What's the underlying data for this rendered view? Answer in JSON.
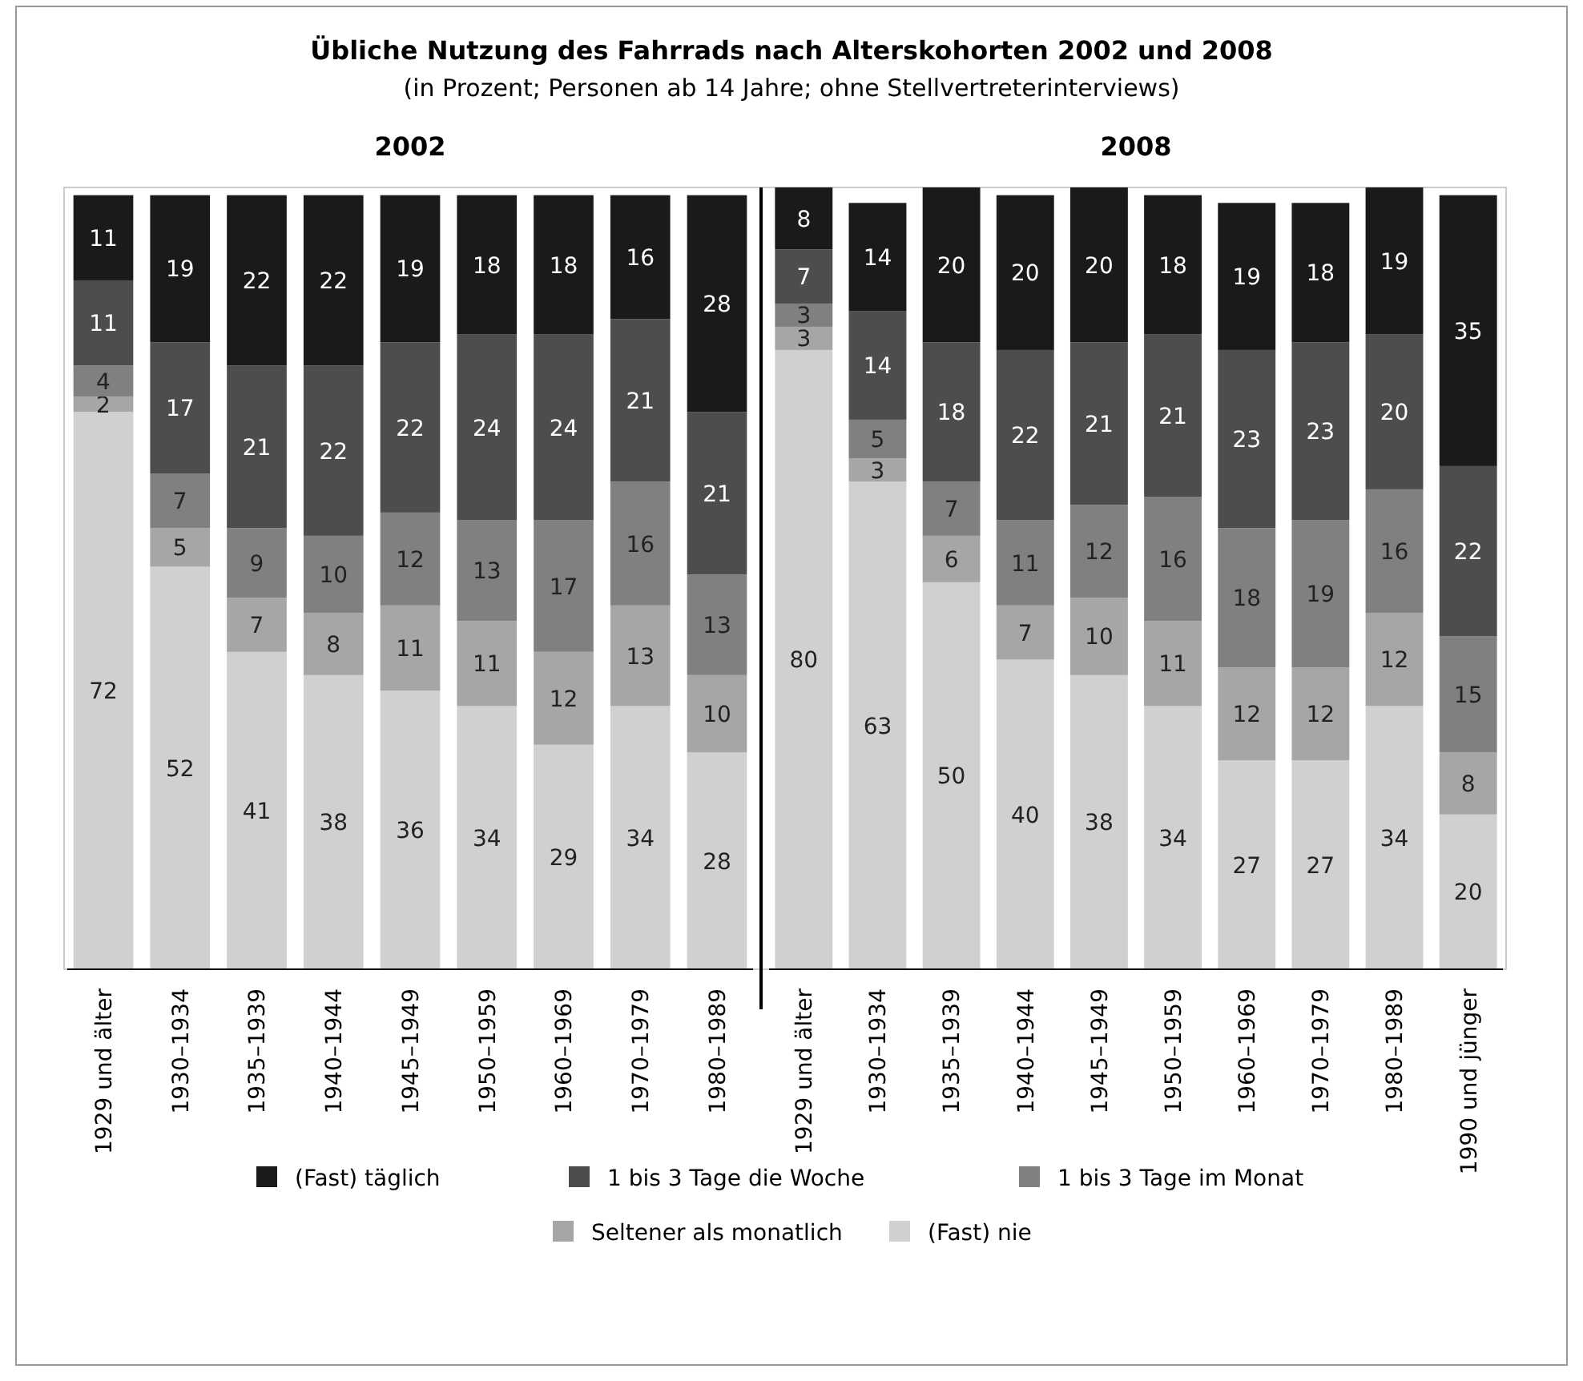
{
  "chart_data": [
    {
      "type": "other",
      "title": "Übliche Nutzung des Fahrrads nach Alterskohorten 2002 und 2008",
      "subtitle": "(in Prozent; Personen ab 14 Jahre; ohne Stellvertreterinterviews)"
    },
    {
      "type": "bar",
      "title": "2002",
      "stacked": true,
      "data_labels": true,
      "ylim": [
        0,
        101
      ],
      "tick_labels": "x",
      "categories": [
        "1929 und älter",
        "1930–1934",
        "1935–1939",
        "1940–1944",
        "1945–1949",
        "1950–1959",
        "1960–1969",
        "1970–1979",
        "1980–1989"
      ],
      "series": [
        {
          "color": "#d0d0d0",
          "values": [
            72,
            52,
            41,
            38,
            36,
            34,
            29,
            34,
            28
          ]
        },
        {
          "color": "#a6a6a6",
          "values": [
            2,
            5,
            7,
            8,
            11,
            11,
            12,
            13,
            10
          ]
        },
        {
          "color": "#808080",
          "values": [
            4,
            7,
            9,
            10,
            12,
            13,
            17,
            16,
            13
          ]
        },
        {
          "color": "#4d4d4d",
          "values": [
            11,
            17,
            21,
            22,
            22,
            24,
            24,
            21,
            21
          ]
        },
        {
          "color": "#1a1a1a",
          "values": [
            11,
            19,
            22,
            22,
            19,
            18,
            18,
            16,
            28
          ]
        }
      ]
    },
    {
      "type": "bar",
      "title": "2008",
      "stacked": true,
      "data_labels": true,
      "ylim": [
        0,
        101
      ],
      "tick_labels": "x",
      "legend": "bottom",
      "categories": [
        "1929 und älter",
        "1930–1934",
        "1935–1939",
        "1940–1944",
        "1945–1949",
        "1950–1959",
        "1960–1969",
        "1970–1979",
        "1980–1989",
        "1990 und jünger"
      ],
      "series": [
        {
          "name": "(Fast) nie",
          "color": "#d0d0d0",
          "values": [
            80,
            63,
            50,
            40,
            38,
            34,
            27,
            27,
            34,
            20
          ]
        },
        {
          "name": "Seltener als monatlich",
          "color": "#a6a6a6",
          "values": [
            3,
            3,
            6,
            7,
            10,
            11,
            12,
            12,
            12,
            8
          ]
        },
        {
          "name": "1 bis 3 Tage im Monat",
          "color": "#808080",
          "values": [
            3,
            5,
            7,
            11,
            12,
            16,
            18,
            19,
            16,
            15
          ]
        },
        {
          "name": "1 bis 3 Tage die Woche",
          "color": "#4d4d4d",
          "values": [
            7,
            14,
            18,
            22,
            21,
            21,
            23,
            23,
            20,
            22
          ]
        },
        {
          "name": "(Fast) täglich",
          "color": "#1a1a1a",
          "values": [
            8,
            14,
            20,
            20,
            20,
            18,
            19,
            18,
            19,
            35
          ]
        }
      ]
    }
  ]
}
